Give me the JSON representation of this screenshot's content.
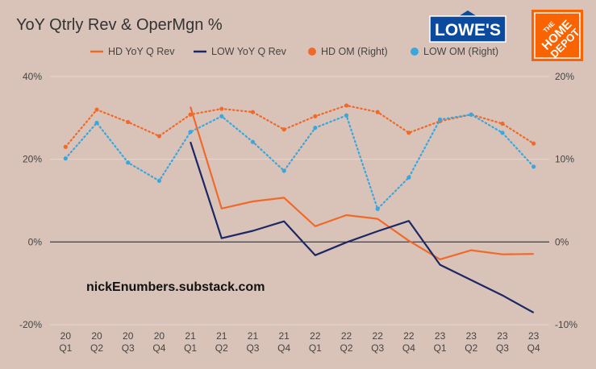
{
  "title": "YoY Qtrly Rev & OperMgn %",
  "watermark": "nickEnumbers.substack.com",
  "logos": {
    "lowes": {
      "text": "LOWE'S",
      "color": "#0c4a9e"
    },
    "home_depot": {
      "line1": "THE",
      "line2": "HOME",
      "line3": "DEPOT",
      "color": "#f96302"
    }
  },
  "colors": {
    "hd": "#ef6a2a",
    "low": "#1c2764",
    "low_om": "#3aa7dc",
    "zero_line": "#333333",
    "grid": "#e6d6cf",
    "background": "#d9c3b9"
  },
  "chart_data": {
    "type": "line",
    "title": "YoY Qtrly Rev & OperMgn %",
    "categories": [
      [
        "20",
        "Q1"
      ],
      [
        "20",
        "Q2"
      ],
      [
        "20",
        "Q3"
      ],
      [
        "20",
        "Q4"
      ],
      [
        "21",
        "Q1"
      ],
      [
        "21",
        "Q2"
      ],
      [
        "21",
        "Q3"
      ],
      [
        "21",
        "Q4"
      ],
      [
        "22",
        "Q1"
      ],
      [
        "22",
        "Q2"
      ],
      [
        "22",
        "Q3"
      ],
      [
        "22",
        "Q4"
      ],
      [
        "23",
        "Q1"
      ],
      [
        "23",
        "Q2"
      ],
      [
        "23",
        "Q3"
      ],
      [
        "23",
        "Q4"
      ]
    ],
    "left_axis": {
      "ylim": [
        -20,
        40
      ],
      "ticks": [
        "40%",
        "20%",
        "0%",
        "-20%"
      ],
      "tick_values": [
        40,
        20,
        0,
        -20
      ]
    },
    "right_axis": {
      "ylim": [
        -10,
        20
      ],
      "ticks": [
        "20%",
        "10%",
        "0%",
        "-10%"
      ],
      "tick_values": [
        20,
        10,
        0,
        -10
      ]
    },
    "grid": true,
    "legend_position": "top",
    "series": [
      {
        "name": "HD YoY Q Rev",
        "axis": "left",
        "style": "solid",
        "color": "#ef6a2a",
        "values": [
          null,
          null,
          null,
          null,
          32.7,
          8.1,
          9.8,
          10.7,
          3.8,
          6.5,
          5.6,
          0.3,
          -4.2,
          -2.0,
          -3.0,
          -2.9
        ]
      },
      {
        "name": "LOW YoY Q Rev",
        "axis": "left",
        "style": "solid",
        "color": "#1c2764",
        "values": [
          null,
          null,
          null,
          null,
          24.2,
          0.9,
          2.7,
          5.0,
          -3.2,
          -0.1,
          2.6,
          5.1,
          -5.5,
          -9.2,
          -12.9,
          -17.1
        ]
      },
      {
        "name": "HD OM (Right)",
        "axis": "right",
        "style": "dotted",
        "color": "#ef6a2a",
        "values": [
          11.5,
          16.0,
          14.5,
          12.8,
          15.4,
          16.1,
          15.7,
          13.6,
          15.2,
          16.5,
          15.7,
          13.2,
          14.6,
          15.4,
          14.3,
          11.9
        ]
      },
      {
        "name": "LOW OM (Right)",
        "axis": "right",
        "style": "dotted",
        "color": "#3aa7dc",
        "values": [
          10.1,
          14.4,
          9.6,
          7.4,
          13.3,
          15.2,
          12.1,
          8.6,
          13.8,
          15.3,
          4.0,
          7.8,
          14.8,
          15.4,
          13.2,
          9.1
        ]
      }
    ]
  }
}
